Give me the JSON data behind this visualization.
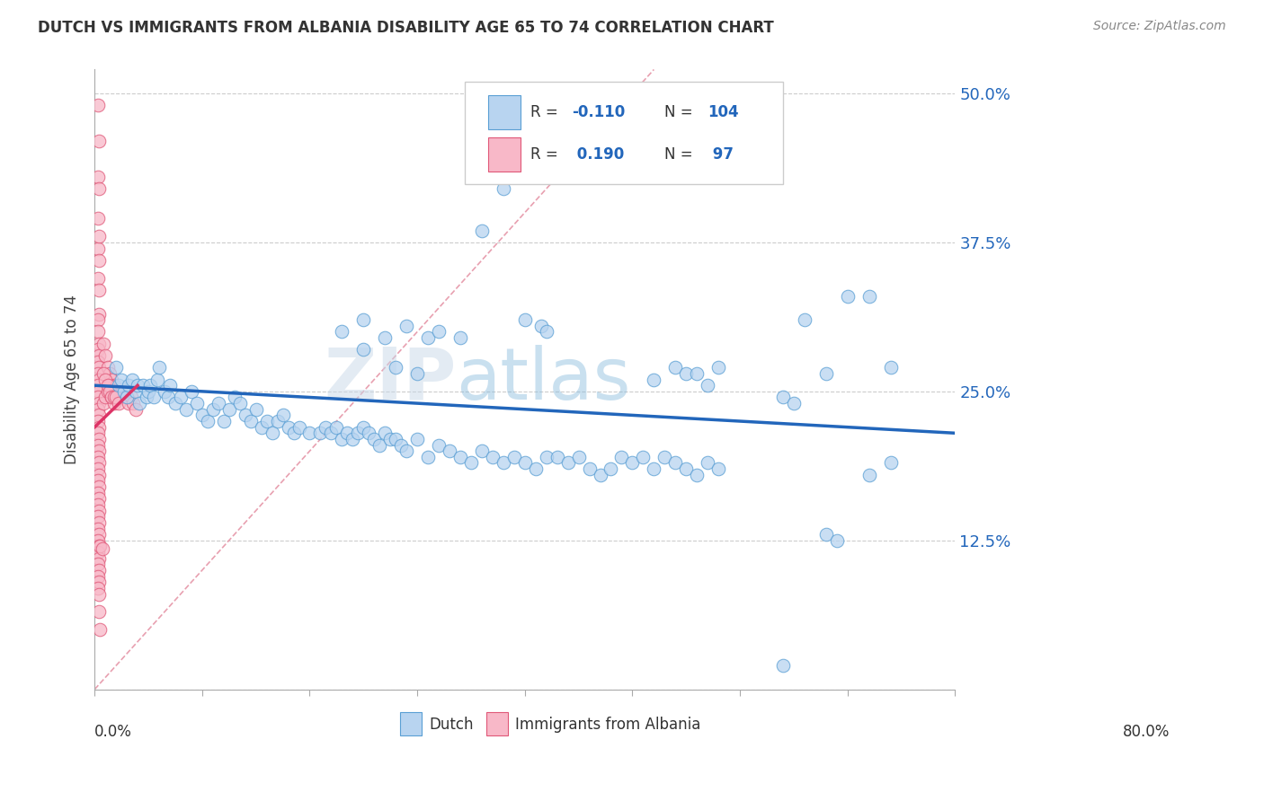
{
  "title": "DUTCH VS IMMIGRANTS FROM ALBANIA DISABILITY AGE 65 TO 74 CORRELATION CHART",
  "source": "Source: ZipAtlas.com",
  "ylabel": "Disability Age 65 to 74",
  "yticks": [
    0.0,
    0.125,
    0.25,
    0.375,
    0.5
  ],
  "ytick_labels": [
    "",
    "12.5%",
    "25.0%",
    "37.5%",
    "50.0%"
  ],
  "xmin": 0.0,
  "xmax": 0.8,
  "ymin": 0.0,
  "ymax": 0.52,
  "dutch_color": "#b8d4f0",
  "dutch_edge_color": "#5a9fd4",
  "albania_color": "#f8b8c8",
  "albania_edge_color": "#e05878",
  "trendline_dutch_color": "#2266bb",
  "trendline_albania_color": "#dd3366",
  "diag_color": "#e8a0b0",
  "watermark_color": "#c8dff0",
  "legend_R_dutch": "-0.110",
  "legend_N_dutch": "104",
  "legend_R_albania": "0.190",
  "legend_N_albania": "97",
  "dutch_scatter": [
    [
      0.02,
      0.27
    ],
    [
      0.022,
      0.255
    ],
    [
      0.025,
      0.26
    ],
    [
      0.027,
      0.25
    ],
    [
      0.03,
      0.245
    ],
    [
      0.032,
      0.255
    ],
    [
      0.035,
      0.26
    ],
    [
      0.038,
      0.25
    ],
    [
      0.04,
      0.255
    ],
    [
      0.042,
      0.24
    ],
    [
      0.045,
      0.255
    ],
    [
      0.048,
      0.245
    ],
    [
      0.05,
      0.25
    ],
    [
      0.052,
      0.255
    ],
    [
      0.055,
      0.245
    ],
    [
      0.058,
      0.26
    ],
    [
      0.06,
      0.27
    ],
    [
      0.065,
      0.25
    ],
    [
      0.068,
      0.245
    ],
    [
      0.07,
      0.255
    ],
    [
      0.075,
      0.24
    ],
    [
      0.08,
      0.245
    ],
    [
      0.085,
      0.235
    ],
    [
      0.09,
      0.25
    ],
    [
      0.095,
      0.24
    ],
    [
      0.1,
      0.23
    ],
    [
      0.105,
      0.225
    ],
    [
      0.11,
      0.235
    ],
    [
      0.115,
      0.24
    ],
    [
      0.12,
      0.225
    ],
    [
      0.125,
      0.235
    ],
    [
      0.13,
      0.245
    ],
    [
      0.135,
      0.24
    ],
    [
      0.14,
      0.23
    ],
    [
      0.145,
      0.225
    ],
    [
      0.15,
      0.235
    ],
    [
      0.155,
      0.22
    ],
    [
      0.16,
      0.225
    ],
    [
      0.165,
      0.215
    ],
    [
      0.17,
      0.225
    ],
    [
      0.175,
      0.23
    ],
    [
      0.18,
      0.22
    ],
    [
      0.185,
      0.215
    ],
    [
      0.19,
      0.22
    ],
    [
      0.2,
      0.215
    ],
    [
      0.21,
      0.215
    ],
    [
      0.215,
      0.22
    ],
    [
      0.22,
      0.215
    ],
    [
      0.225,
      0.22
    ],
    [
      0.23,
      0.21
    ],
    [
      0.235,
      0.215
    ],
    [
      0.24,
      0.21
    ],
    [
      0.245,
      0.215
    ],
    [
      0.25,
      0.22
    ],
    [
      0.255,
      0.215
    ],
    [
      0.26,
      0.21
    ],
    [
      0.265,
      0.205
    ],
    [
      0.27,
      0.215
    ],
    [
      0.275,
      0.21
    ],
    [
      0.28,
      0.21
    ],
    [
      0.285,
      0.205
    ],
    [
      0.29,
      0.2
    ],
    [
      0.3,
      0.21
    ],
    [
      0.31,
      0.195
    ],
    [
      0.32,
      0.205
    ],
    [
      0.33,
      0.2
    ],
    [
      0.34,
      0.195
    ],
    [
      0.35,
      0.19
    ],
    [
      0.36,
      0.2
    ],
    [
      0.37,
      0.195
    ],
    [
      0.38,
      0.19
    ],
    [
      0.39,
      0.195
    ],
    [
      0.4,
      0.19
    ],
    [
      0.41,
      0.185
    ],
    [
      0.42,
      0.195
    ],
    [
      0.43,
      0.195
    ],
    [
      0.44,
      0.19
    ],
    [
      0.45,
      0.195
    ],
    [
      0.46,
      0.185
    ],
    [
      0.47,
      0.18
    ],
    [
      0.48,
      0.185
    ],
    [
      0.49,
      0.195
    ],
    [
      0.5,
      0.19
    ],
    [
      0.51,
      0.195
    ],
    [
      0.52,
      0.185
    ],
    [
      0.53,
      0.195
    ],
    [
      0.54,
      0.19
    ],
    [
      0.55,
      0.185
    ],
    [
      0.56,
      0.18
    ],
    [
      0.57,
      0.19
    ],
    [
      0.58,
      0.185
    ],
    [
      0.23,
      0.3
    ],
    [
      0.25,
      0.31
    ],
    [
      0.27,
      0.295
    ],
    [
      0.29,
      0.305
    ],
    [
      0.31,
      0.295
    ],
    [
      0.32,
      0.3
    ],
    [
      0.34,
      0.295
    ],
    [
      0.4,
      0.31
    ],
    [
      0.415,
      0.305
    ],
    [
      0.42,
      0.3
    ],
    [
      0.25,
      0.285
    ],
    [
      0.28,
      0.27
    ],
    [
      0.3,
      0.265
    ],
    [
      0.36,
      0.385
    ],
    [
      0.38,
      0.42
    ],
    [
      0.52,
      0.26
    ],
    [
      0.54,
      0.27
    ],
    [
      0.55,
      0.265
    ],
    [
      0.56,
      0.265
    ],
    [
      0.57,
      0.255
    ],
    [
      0.58,
      0.27
    ],
    [
      0.64,
      0.245
    ],
    [
      0.65,
      0.24
    ],
    [
      0.66,
      0.31
    ],
    [
      0.68,
      0.265
    ],
    [
      0.7,
      0.33
    ],
    [
      0.72,
      0.33
    ],
    [
      0.74,
      0.27
    ],
    [
      0.72,
      0.18
    ],
    [
      0.74,
      0.19
    ],
    [
      0.68,
      0.13
    ],
    [
      0.69,
      0.125
    ],
    [
      0.64,
      0.02
    ]
  ],
  "albania_scatter": [
    [
      0.003,
      0.49
    ],
    [
      0.004,
      0.46
    ],
    [
      0.003,
      0.43
    ],
    [
      0.004,
      0.42
    ],
    [
      0.003,
      0.395
    ],
    [
      0.003,
      0.37
    ],
    [
      0.004,
      0.36
    ],
    [
      0.003,
      0.345
    ],
    [
      0.004,
      0.335
    ],
    [
      0.004,
      0.315
    ],
    [
      0.003,
      0.31
    ],
    [
      0.003,
      0.3
    ],
    [
      0.004,
      0.29
    ],
    [
      0.003,
      0.285
    ],
    [
      0.004,
      0.28
    ],
    [
      0.003,
      0.275
    ],
    [
      0.004,
      0.27
    ],
    [
      0.003,
      0.265
    ],
    [
      0.004,
      0.26
    ],
    [
      0.003,
      0.255
    ],
    [
      0.004,
      0.25
    ],
    [
      0.003,
      0.245
    ],
    [
      0.004,
      0.24
    ],
    [
      0.003,
      0.235
    ],
    [
      0.004,
      0.23
    ],
    [
      0.003,
      0.225
    ],
    [
      0.004,
      0.22
    ],
    [
      0.003,
      0.215
    ],
    [
      0.004,
      0.21
    ],
    [
      0.003,
      0.205
    ],
    [
      0.004,
      0.2
    ],
    [
      0.003,
      0.195
    ],
    [
      0.004,
      0.19
    ],
    [
      0.003,
      0.185
    ],
    [
      0.004,
      0.18
    ],
    [
      0.003,
      0.175
    ],
    [
      0.004,
      0.17
    ],
    [
      0.003,
      0.165
    ],
    [
      0.004,
      0.16
    ],
    [
      0.003,
      0.155
    ],
    [
      0.004,
      0.15
    ],
    [
      0.003,
      0.145
    ],
    [
      0.004,
      0.14
    ],
    [
      0.003,
      0.135
    ],
    [
      0.004,
      0.13
    ],
    [
      0.003,
      0.125
    ],
    [
      0.004,
      0.12
    ],
    [
      0.003,
      0.115
    ],
    [
      0.004,
      0.11
    ],
    [
      0.003,
      0.105
    ],
    [
      0.004,
      0.1
    ],
    [
      0.003,
      0.095
    ],
    [
      0.004,
      0.09
    ],
    [
      0.003,
      0.085
    ],
    [
      0.004,
      0.08
    ],
    [
      0.008,
      0.29
    ],
    [
      0.01,
      0.28
    ],
    [
      0.012,
      0.27
    ],
    [
      0.014,
      0.265
    ],
    [
      0.016,
      0.26
    ],
    [
      0.018,
      0.255
    ],
    [
      0.02,
      0.25
    ],
    [
      0.022,
      0.25
    ],
    [
      0.024,
      0.245
    ],
    [
      0.026,
      0.25
    ],
    [
      0.008,
      0.24
    ],
    [
      0.01,
      0.245
    ],
    [
      0.012,
      0.25
    ],
    [
      0.014,
      0.255
    ],
    [
      0.016,
      0.245
    ],
    [
      0.018,
      0.24
    ],
    [
      0.004,
      0.38
    ],
    [
      0.008,
      0.265
    ],
    [
      0.01,
      0.26
    ],
    [
      0.012,
      0.255
    ],
    [
      0.014,
      0.25
    ],
    [
      0.016,
      0.245
    ],
    [
      0.018,
      0.245
    ],
    [
      0.02,
      0.245
    ],
    [
      0.022,
      0.24
    ],
    [
      0.005,
      0.12
    ],
    [
      0.007,
      0.118
    ],
    [
      0.004,
      0.065
    ],
    [
      0.005,
      0.05
    ],
    [
      0.03,
      0.245
    ],
    [
      0.032,
      0.24
    ],
    [
      0.034,
      0.245
    ],
    [
      0.036,
      0.24
    ],
    [
      0.038,
      0.235
    ]
  ]
}
